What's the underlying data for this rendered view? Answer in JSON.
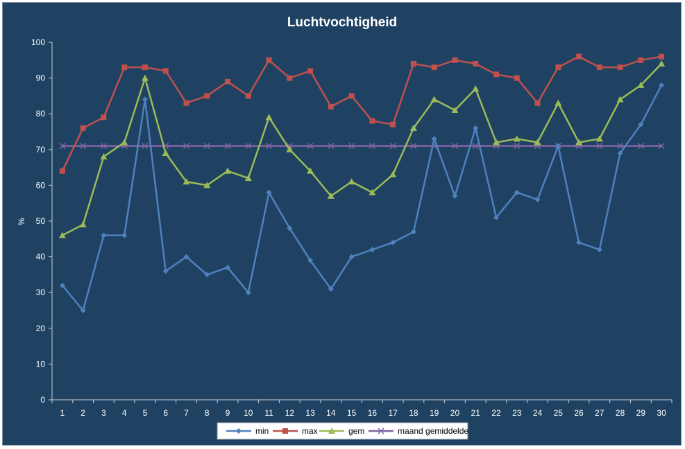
{
  "chart_data": {
    "type": "line",
    "title": "Luchtvochtigheid",
    "xlabel": "",
    "ylabel": "%",
    "ylim": [
      0,
      100
    ],
    "yticks": [
      0,
      10,
      20,
      30,
      40,
      50,
      60,
      70,
      80,
      90,
      100
    ],
    "categories": [
      "1",
      "2",
      "3",
      "4",
      "5",
      "6",
      "7",
      "8",
      "9",
      "10",
      "11",
      "12",
      "13",
      "14",
      "15",
      "16",
      "17",
      "18",
      "19",
      "20",
      "21",
      "22",
      "23",
      "24",
      "25",
      "26",
      "27",
      "28",
      "29",
      "30"
    ],
    "grid": false,
    "legend_position": "bottom",
    "series": [
      {
        "name": "min",
        "color": "#4f81bd",
        "marker": "diamond",
        "values": [
          32,
          25,
          46,
          46,
          84,
          36,
          40,
          35,
          37,
          30,
          58,
          48,
          39,
          31,
          40,
          42,
          44,
          47,
          73,
          57,
          76,
          51,
          58,
          56,
          71,
          44,
          42,
          69,
          77,
          88
        ]
      },
      {
        "name": "max",
        "color": "#c0504d",
        "marker": "square",
        "values": [
          64,
          76,
          79,
          93,
          93,
          92,
          83,
          85,
          89,
          85,
          95,
          90,
          92,
          82,
          85,
          78,
          77,
          94,
          93,
          95,
          94,
          91,
          90,
          83,
          93,
          96,
          93,
          93,
          95,
          96
        ]
      },
      {
        "name": "gem",
        "color": "#9bbb59",
        "marker": "triangle",
        "values": [
          46,
          49,
          68,
          72,
          90,
          69,
          61,
          60,
          64,
          62,
          79,
          70,
          64,
          57,
          61,
          58,
          63,
          76,
          84,
          81,
          87,
          72,
          73,
          72,
          83,
          72,
          73,
          84,
          88,
          94
        ]
      },
      {
        "name": "maand gemiddelde",
        "color": "#8064a2",
        "marker": "x",
        "values": [
          71,
          71,
          71,
          71,
          71,
          71,
          71,
          71,
          71,
          71,
          71,
          71,
          71,
          71,
          71,
          71,
          71,
          71,
          71,
          71,
          71,
          71,
          71,
          71,
          71,
          71,
          71,
          71,
          71,
          71
        ]
      }
    ]
  }
}
